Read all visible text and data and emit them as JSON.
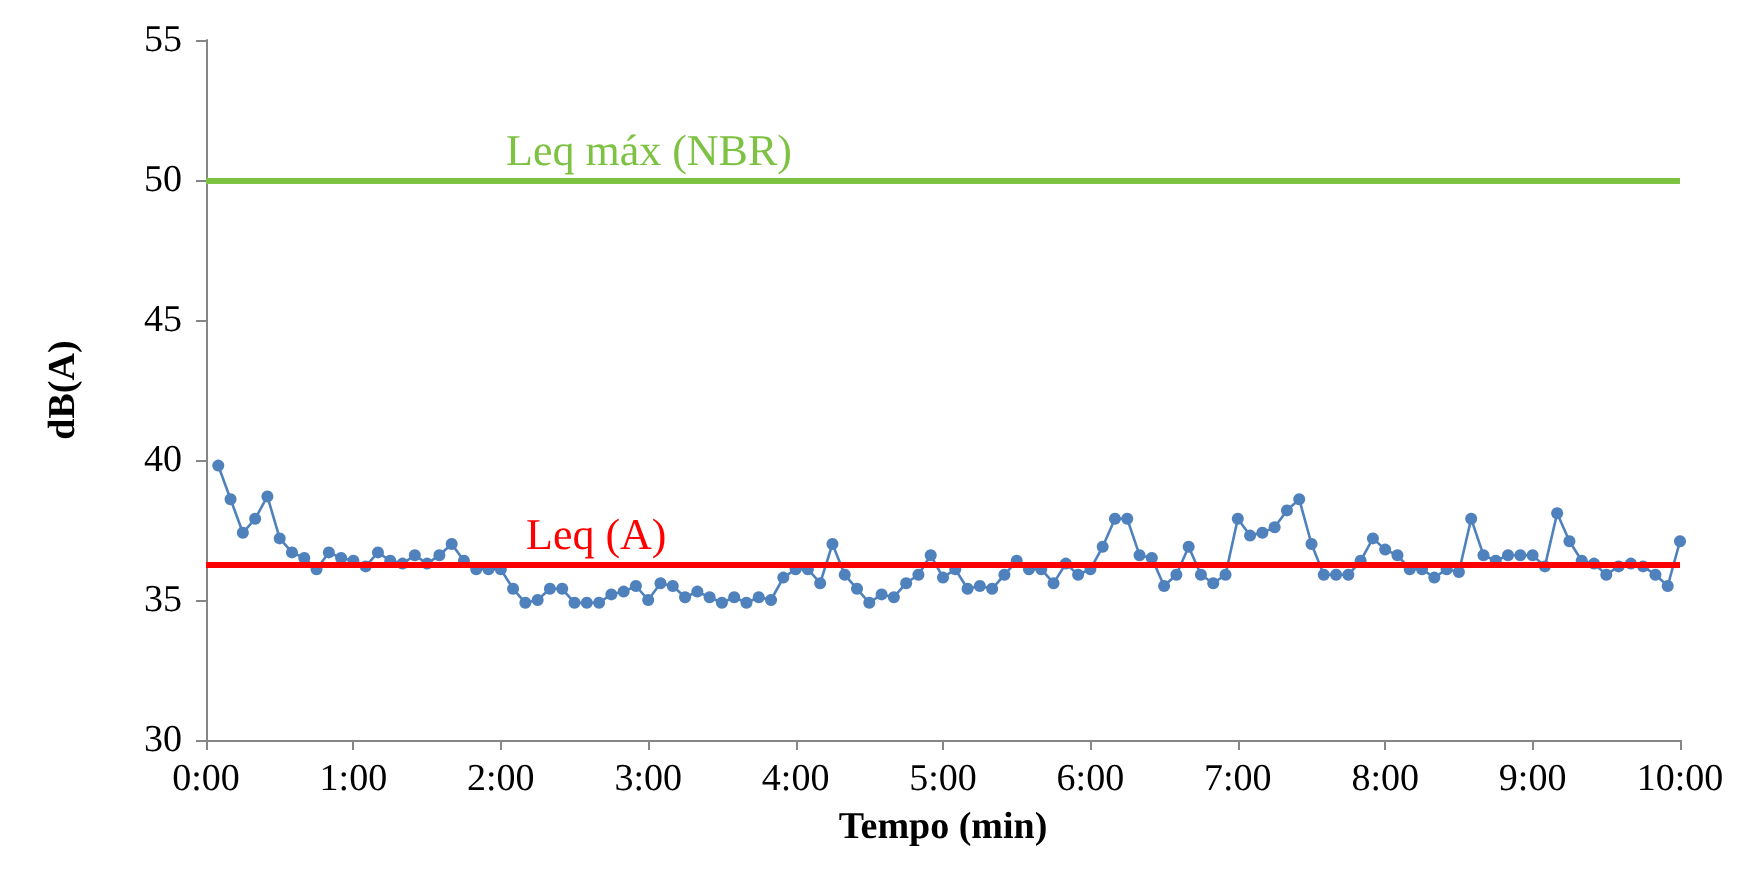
{
  "chart_data": {
    "type": "line",
    "xlabel": "Tempo (min)",
    "ylabel": "dB(A)",
    "x": [
      5,
      10,
      15,
      20,
      25,
      30,
      35,
      40,
      45,
      50,
      55,
      60,
      65,
      70,
      75,
      80,
      85,
      90,
      95,
      100,
      105,
      110,
      115,
      120,
      125,
      130,
      135,
      140,
      145,
      150,
      155,
      160,
      165,
      170,
      175,
      180,
      185,
      190,
      195,
      200,
      205,
      210,
      215,
      220,
      225,
      230,
      235,
      240,
      245,
      250,
      255,
      260,
      265,
      270,
      275,
      280,
      285,
      290,
      295,
      300,
      305,
      310,
      315,
      320,
      325,
      330,
      335,
      340,
      345,
      350,
      355,
      360,
      365,
      370,
      375,
      380,
      385,
      390,
      395,
      400,
      405,
      410,
      415,
      420,
      425,
      430,
      435,
      440,
      445,
      450,
      455,
      460,
      465,
      470,
      475,
      480,
      485,
      490,
      495,
      500,
      505,
      510,
      515,
      520,
      525,
      530,
      535,
      540,
      545,
      550,
      555,
      560,
      565,
      570,
      575,
      580,
      585,
      590,
      595,
      600
    ],
    "series": [
      {
        "color": "#4f81bd",
        "values": [
          39.8,
          38.6,
          37.4,
          37.9,
          38.7,
          37.2,
          36.7,
          36.5,
          36.1,
          36.7,
          36.5,
          36.4,
          36.2,
          36.7,
          36.4,
          36.3,
          36.6,
          36.3,
          36.6,
          37.0,
          36.4,
          36.1,
          36.1,
          36.1,
          35.4,
          34.9,
          35.0,
          35.4,
          35.4,
          34.9,
          34.9,
          34.9,
          35.2,
          35.3,
          35.5,
          35.0,
          35.6,
          35.5,
          35.1,
          35.3,
          35.1,
          34.9,
          35.1,
          34.9,
          35.1,
          35.0,
          35.8,
          36.1,
          36.1,
          35.6,
          37.0,
          35.9,
          35.4,
          34.9,
          35.2,
          35.1,
          35.6,
          35.9,
          36.6,
          35.8,
          36.1,
          35.4,
          35.5,
          35.4,
          35.9,
          36.4,
          36.1,
          36.1,
          35.6,
          36.3,
          35.9,
          36.1,
          36.9,
          37.9,
          37.9,
          36.6,
          36.5,
          35.5,
          35.9,
          36.9,
          35.9,
          35.6,
          35.9,
          37.9,
          37.3,
          37.4,
          37.6,
          38.2,
          38.6,
          37.0,
          35.9,
          35.9,
          35.9,
          36.4,
          37.2,
          36.8,
          36.6,
          36.1,
          36.1,
          35.8,
          36.1,
          36.0,
          37.9,
          36.6,
          36.4,
          36.6,
          36.6,
          36.6,
          36.2,
          38.1,
          37.1,
          36.4,
          36.3,
          35.9,
          36.2,
          36.3,
          36.2,
          35.9,
          35.5,
          37.1
        ]
      }
    ],
    "xlim": [
      0,
      600
    ],
    "xticks": [
      {
        "value": 0,
        "label": "0:00"
      },
      {
        "value": 60,
        "label": "1:00"
      },
      {
        "value": 120,
        "label": "2:00"
      },
      {
        "value": 180,
        "label": "3:00"
      },
      {
        "value": 240,
        "label": "4:00"
      },
      {
        "value": 300,
        "label": "5:00"
      },
      {
        "value": 360,
        "label": "6:00"
      },
      {
        "value": 420,
        "label": "7:00"
      },
      {
        "value": 480,
        "label": "8:00"
      },
      {
        "value": 540,
        "label": "9:00"
      },
      {
        "value": 600,
        "label": "10:00"
      }
    ],
    "ylim": [
      30,
      55
    ],
    "yticks": [
      30,
      35,
      40,
      45,
      50,
      55
    ],
    "ref_lines": [
      {
        "axis": "y",
        "value": 50,
        "label": "Leq máx (NBR)",
        "color": "#7dc242"
      },
      {
        "axis": "y",
        "value": 36.3,
        "label": "Leq (A)",
        "color": "#ff0000"
      }
    ],
    "marker": "circle",
    "line_style": "solid",
    "grid": false
  }
}
